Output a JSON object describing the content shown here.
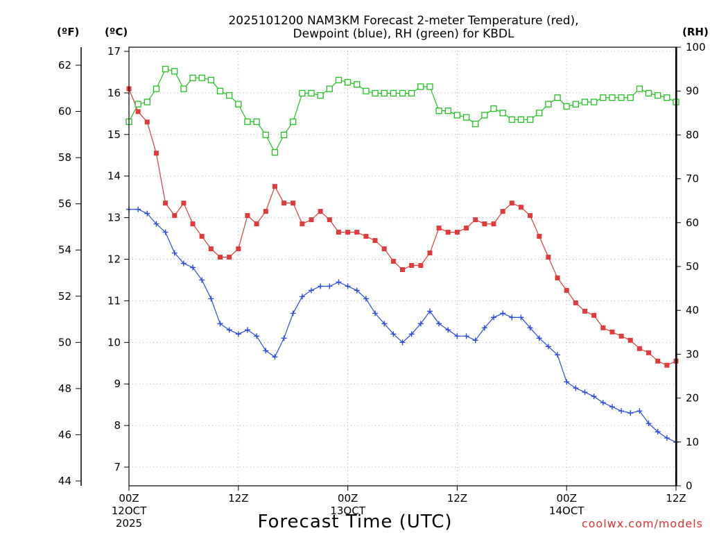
{
  "chart_data": {
    "type": "line",
    "title_line1": "2025101200 NAM3KM Forecast 2-meter Temperature (red),",
    "title_line2": "Dewpoint (blue), RH (green) for KBDL",
    "xlabel": "Forecast Time (UTC)",
    "credit": "coolwx.com/models",
    "unit_f": "(ºF)",
    "unit_c": "(ºC)",
    "unit_rh": "(RH)",
    "x_ticks": [
      {
        "hour": 0,
        "label": "00Z",
        "sub": "12OCT",
        "sub2": "2025"
      },
      {
        "hour": 12,
        "label": "12Z",
        "sub": "",
        "sub2": ""
      },
      {
        "hour": 24,
        "label": "00Z",
        "sub": "13OCT",
        "sub2": ""
      },
      {
        "hour": 36,
        "label": "12Z",
        "sub": "",
        "sub2": ""
      },
      {
        "hour": 48,
        "label": "00Z",
        "sub": "14OCT",
        "sub2": ""
      },
      {
        "hour": 60,
        "label": "12Z",
        "sub": "",
        "sub2": ""
      }
    ],
    "x_range": [
      0,
      60
    ],
    "c_range": [
      6.55,
      17.1
    ],
    "c_ticks": [
      "7",
      "8",
      "9",
      "10",
      "11",
      "12",
      "13",
      "14",
      "15",
      "16",
      "17"
    ],
    "f_ticks": [
      "44",
      "46",
      "48",
      "50",
      "52",
      "54",
      "56",
      "58",
      "60",
      "62"
    ],
    "rh_range": [
      0,
      100
    ],
    "rh_ticks": [
      "0",
      "10",
      "20",
      "30",
      "40",
      "50",
      "60",
      "70",
      "80",
      "90",
      "100"
    ],
    "series": [
      {
        "name": "Temperature",
        "color": "#e03a3a",
        "marker": "filled-square",
        "axis": "celsius",
        "values": [
          16.1,
          15.55,
          15.3,
          14.55,
          13.35,
          13.05,
          13.35,
          12.85,
          12.55,
          12.25,
          12.05,
          12.05,
          12.25,
          13.05,
          12.85,
          13.15,
          13.75,
          13.35,
          13.35,
          12.85,
          12.95,
          13.15,
          12.95,
          12.65,
          12.65,
          12.65,
          12.55,
          12.45,
          12.25,
          11.95,
          11.75,
          11.85,
          11.85,
          12.15,
          12.75,
          12.65,
          12.65,
          12.75,
          12.95,
          12.85,
          12.85,
          13.15,
          13.35,
          13.25,
          13.05,
          12.55,
          12.05,
          11.55,
          11.25,
          10.95,
          10.75,
          10.65,
          10.35,
          10.25,
          10.15,
          10.05,
          9.85,
          9.75,
          9.55,
          9.45,
          9.55
        ]
      },
      {
        "name": "Dewpoint",
        "color": "#2a4ae0",
        "marker": "plus",
        "axis": "celsius",
        "values": [
          13.2,
          13.2,
          13.1,
          12.85,
          12.65,
          12.15,
          11.9,
          11.8,
          11.5,
          11.05,
          10.45,
          10.3,
          10.2,
          10.3,
          10.15,
          9.8,
          9.65,
          10.1,
          10.7,
          11.1,
          11.25,
          11.35,
          11.35,
          11.45,
          11.35,
          11.25,
          11.05,
          10.7,
          10.45,
          10.2,
          10.0,
          10.2,
          10.45,
          10.75,
          10.45,
          10.3,
          10.15,
          10.15,
          10.05,
          10.35,
          10.6,
          10.7,
          10.6,
          10.6,
          10.35,
          10.1,
          9.9,
          9.7,
          9.05,
          8.9,
          8.8,
          8.7,
          8.55,
          8.45,
          8.35,
          8.3,
          8.35,
          8.05,
          7.85,
          7.7,
          7.6
        ]
      },
      {
        "name": "RH",
        "color": "#22c022",
        "marker": "open-square",
        "axis": "rh",
        "values": [
          83,
          87,
          87.5,
          90.5,
          95,
          94.5,
          90.5,
          93,
          93,
          92.5,
          90,
          89,
          87,
          83,
          83,
          80,
          76,
          80,
          83,
          89.5,
          89.5,
          89,
          90.5,
          92.5,
          92,
          91.5,
          90,
          89.5,
          89.5,
          89.5,
          89.5,
          89.5,
          91,
          91,
          85.5,
          85.5,
          84.5,
          84,
          82.5,
          84.5,
          86,
          85,
          83.5,
          83.5,
          83.5,
          85,
          87,
          88.5,
          86.5,
          87,
          87.5,
          87.5,
          88.5,
          88.5,
          88.5,
          88.5,
          90.5,
          89.5,
          89,
          88.5,
          87.5
        ]
      }
    ]
  }
}
